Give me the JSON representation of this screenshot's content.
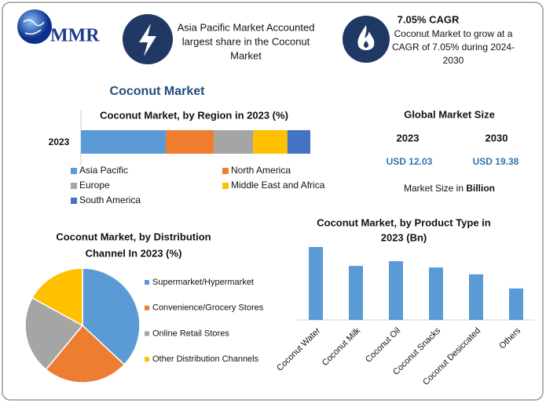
{
  "header": {
    "logo": "MMR",
    "info1": [
      "Asia Pacific Market Accounted",
      "largest share in the Coconut",
      "Market"
    ],
    "info2_title": "7.05% CAGR",
    "info2_text": [
      "Coconut Market to grow at a",
      "CAGR of 7.05% during 2024-",
      "2030"
    ]
  },
  "section_title": "Coconut Market",
  "market_size": {
    "title": "Global Market Size",
    "years": [
      "2023",
      "2030"
    ],
    "values": [
      "USD 12.03",
      "USD 19.38"
    ],
    "note": [
      "Market Size in ",
      "Billion"
    ]
  },
  "chart_data": [
    {
      "type": "stacked-bar",
      "title": "Coconut Market, by Region in 2023 (%)",
      "categories": [
        "2023"
      ],
      "series": [
        {
          "name": "Asia Pacific",
          "color": "#5b9bd5",
          "values": [
            37
          ]
        },
        {
          "name": "North America",
          "color": "#ed7d31",
          "values": [
            21
          ]
        },
        {
          "name": "Europe",
          "color": "#a5a5a5",
          "values": [
            17
          ]
        },
        {
          "name": "Middle East and Africa",
          "color": "#ffc000",
          "values": [
            15
          ]
        },
        {
          "name": "South America",
          "color": "#4472c4",
          "values": [
            10
          ]
        }
      ]
    },
    {
      "type": "pie",
      "title": [
        "Coconut Market, by Distribution",
        "Channel In 2023 (%)"
      ],
      "categories": [
        "Supermarket/Hypermarket",
        "Convenience/Grocery Stores",
        "Online Retail Stores",
        "Other Distribution Channels"
      ],
      "values": [
        37,
        24,
        22,
        17
      ],
      "colors": [
        "#5b9bd5",
        "#ed7d31",
        "#a5a5a5",
        "#ffc000"
      ]
    },
    {
      "type": "bar",
      "title": [
        "Coconut Market, by Product Type in",
        "2023 (Bn)"
      ],
      "categories": [
        "Coconut Water",
        "Coconut Milk",
        "Coconut Oil",
        "Coconut Snacks",
        "Coconut Desiccated",
        "Others"
      ],
      "values": [
        2.78,
        2.06,
        2.24,
        2.0,
        1.74,
        1.2
      ],
      "color": "#5b9bd5"
    }
  ]
}
